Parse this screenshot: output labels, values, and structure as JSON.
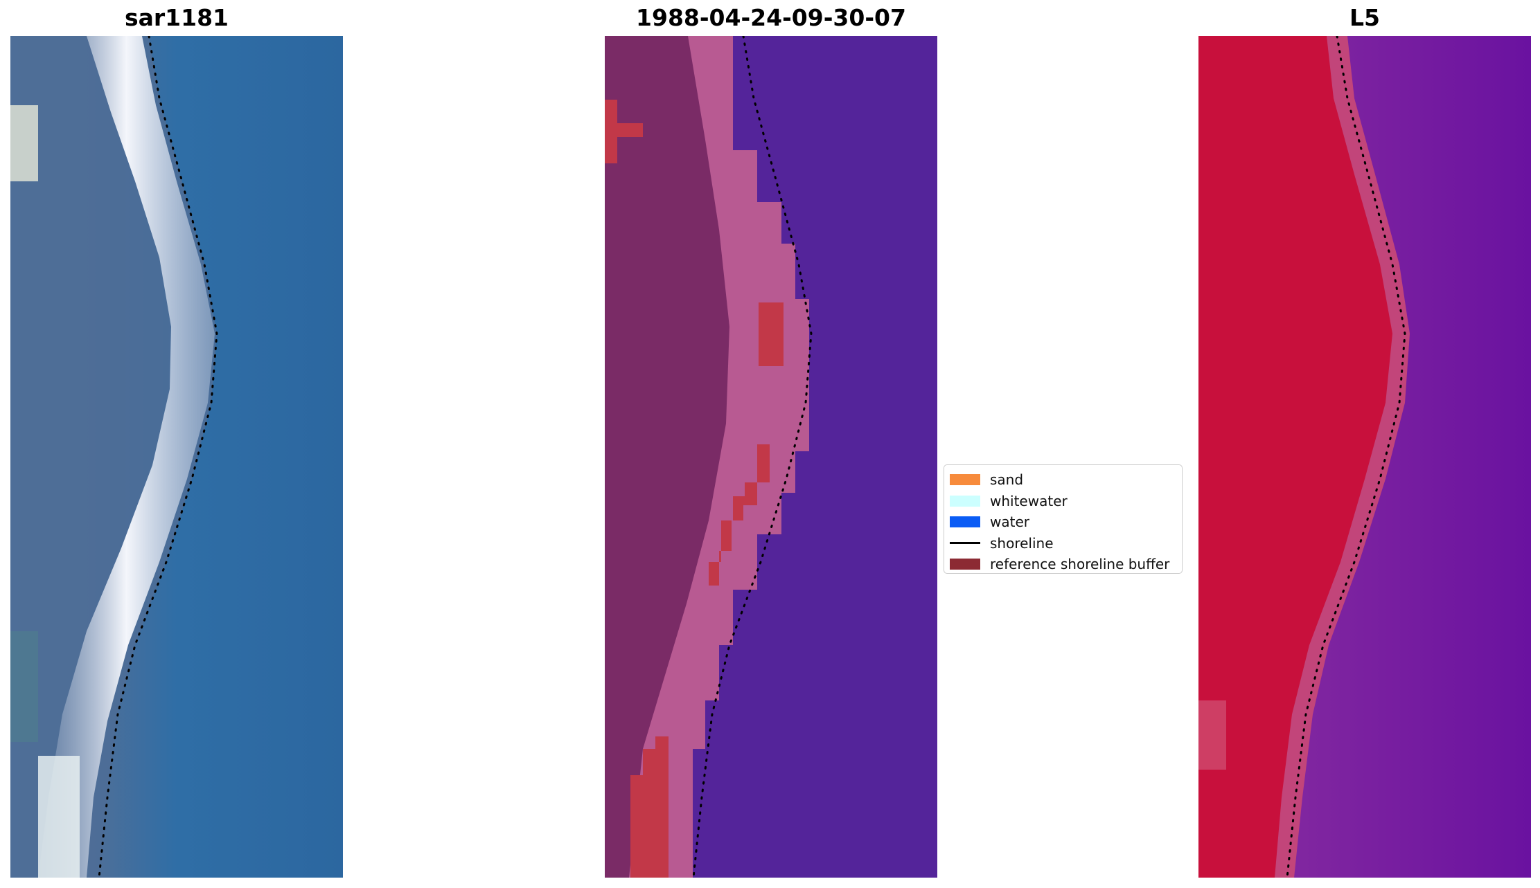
{
  "panels": [
    {
      "title": "sar1181"
    },
    {
      "title": "1988-04-24-09-30-07"
    },
    {
      "title": "L5"
    }
  ],
  "legend": {
    "items": [
      {
        "label": "sand",
        "color": "#f78b3c"
      },
      {
        "label": "whitewater",
        "color": "#ccffff"
      },
      {
        "label": "water",
        "color": "#0a5cf5"
      },
      {
        "label": "shoreline",
        "color": "#000000",
        "kind": "line"
      },
      {
        "label": "reference shoreline buffer",
        "color": "#8c2a33"
      }
    ]
  },
  "colors": {
    "rgb_water": "#2e6fa5",
    "rgb_land": "#5a7fa8",
    "rgb_beach": "#e8ecf4",
    "class_land": "#7a2b66",
    "class_water": "#54249a",
    "class_edge": "#b85a92",
    "class_buffer": "#c23848",
    "ndwi_land": "#c8103c",
    "ndwi_water": "#6e149e"
  }
}
